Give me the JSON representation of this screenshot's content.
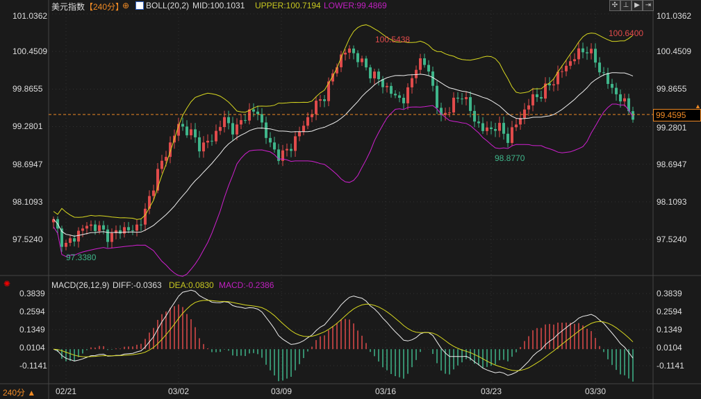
{
  "header": {
    "title": "美元指数",
    "period": "【240分】",
    "boll_label": "BOLL(20,2)",
    "mid": "MID:100.1031",
    "upper": "UPPER:100.7194",
    "lower": "LOWER:99.4869"
  },
  "macd_header": {
    "label": "MACD(26,12,9)",
    "diff": "DIFF:-0.0363",
    "dea": "DEA:0.0830",
    "macd": "MACD:-0.2386"
  },
  "toolbar": [
    "✣",
    "⊥",
    "▶",
    "⇥"
  ],
  "current_price": "99.4595",
  "annotations": {
    "high1": "100.5438",
    "high2": "100.6400",
    "low1": "97.3380",
    "low2": "98.8770"
  },
  "period_selector": "240分 ▲",
  "colors": {
    "up": "#e04b4b",
    "down": "#3fb58a",
    "upper": "#d8d820",
    "mid": "#eeeeee",
    "lower": "#d020d0",
    "price_line": "#f08a24"
  },
  "chart_data": {
    "type": "candlestick",
    "title": "美元指数 240分",
    "price_ticks": [
      "101.0362",
      "100.4509",
      "99.8655",
      "99.2801",
      "98.6947",
      "98.1093",
      "97.5240"
    ],
    "price_tick_values": [
      101.0362,
      100.4509,
      99.8655,
      99.2801,
      98.6947,
      98.1093,
      97.524
    ],
    "macd_ticks": [
      "0.3839",
      "0.2594",
      "0.1349",
      "0.0104",
      "-0.1141"
    ],
    "macd_tick_values": [
      0.3839,
      0.2594,
      0.1349,
      0.0104,
      -0.1141
    ],
    "x_ticks": [
      "02/21",
      "03/02",
      "03/09",
      "03/16",
      "03/23",
      "03/30"
    ],
    "close_keypoints": [
      97.8,
      97.4,
      97.6,
      97.75,
      97.7,
      97.55,
      97.7,
      97.65,
      97.9,
      98.5,
      98.9,
      99.3,
      99.2,
      98.95,
      99.1,
      99.4,
      99.2,
      99.5,
      99.5,
      99.0,
      98.8,
      99.0,
      99.3,
      99.6,
      99.8,
      100.3,
      100.5,
      100.3,
      100.1,
      99.95,
      99.75,
      99.7,
      100.3,
      100.2,
      99.4,
      99.6,
      99.8,
      99.4,
      99.2,
      99.3,
      99.1,
      99.4,
      99.7,
      99.8,
      100.0,
      100.2,
      100.4,
      100.5,
      100.2,
      99.9,
      99.7,
      99.46
    ],
    "candle_count": 140
  }
}
